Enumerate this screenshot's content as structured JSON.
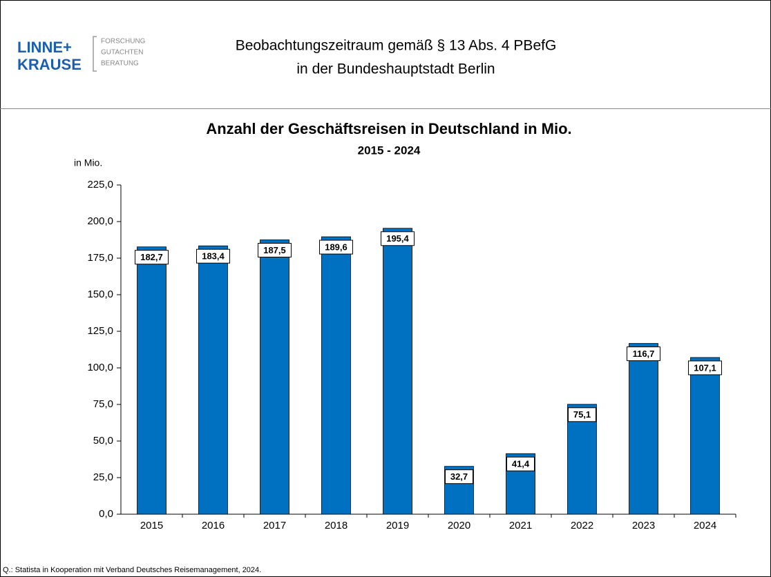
{
  "header": {
    "logo": {
      "line1": "LINNE+",
      "line2": "KRAUSE",
      "tag1": "FORSCHUNG",
      "tag2": "GUTACHTEN",
      "tag3": "BERATUNG"
    },
    "title_line1": "Beobachtungszeitraum gemäß § 13 Abs. 4 PBefG",
    "title_line2": "in der Bundeshauptstadt Berlin"
  },
  "chart_data": {
    "type": "bar",
    "title": "Anzahl der Geschäftsreisen in Deutschland in Mio.",
    "subtitle": "2015 - 2024",
    "y_label": "in Mio.",
    "categories": [
      "2015",
      "2016",
      "2017",
      "2018",
      "2019",
      "2020",
      "2021",
      "2022",
      "2023",
      "2024"
    ],
    "values": [
      182.7,
      183.4,
      187.5,
      189.6,
      195.4,
      32.7,
      41.4,
      75.1,
      116.7,
      107.1
    ],
    "value_labels": [
      "182,7",
      "183,4",
      "187,5",
      "189,6",
      "195,4",
      "32,7",
      "41,4",
      "75,1",
      "116,7",
      "107,1"
    ],
    "color": "#0070c0",
    "ylim": [
      0,
      225
    ],
    "yticks": [
      {
        "value": 0,
        "label": "0,0"
      },
      {
        "value": 25,
        "label": "25,0"
      },
      {
        "value": 50,
        "label": "50,0"
      },
      {
        "value": 75,
        "label": "75,0"
      },
      {
        "value": 100,
        "label": "100,0"
      },
      {
        "value": 125,
        "label": "125,0"
      },
      {
        "value": 150,
        "label": "150,0"
      },
      {
        "value": 175,
        "label": "175,0"
      },
      {
        "value": 200,
        "label": "200,0"
      },
      {
        "value": 225,
        "label": "225,0"
      }
    ],
    "grid": false
  },
  "footer": {
    "source": "Q.:  Statista in Kooperation mit Verband Deutsches Reisemanagement, 2024."
  }
}
